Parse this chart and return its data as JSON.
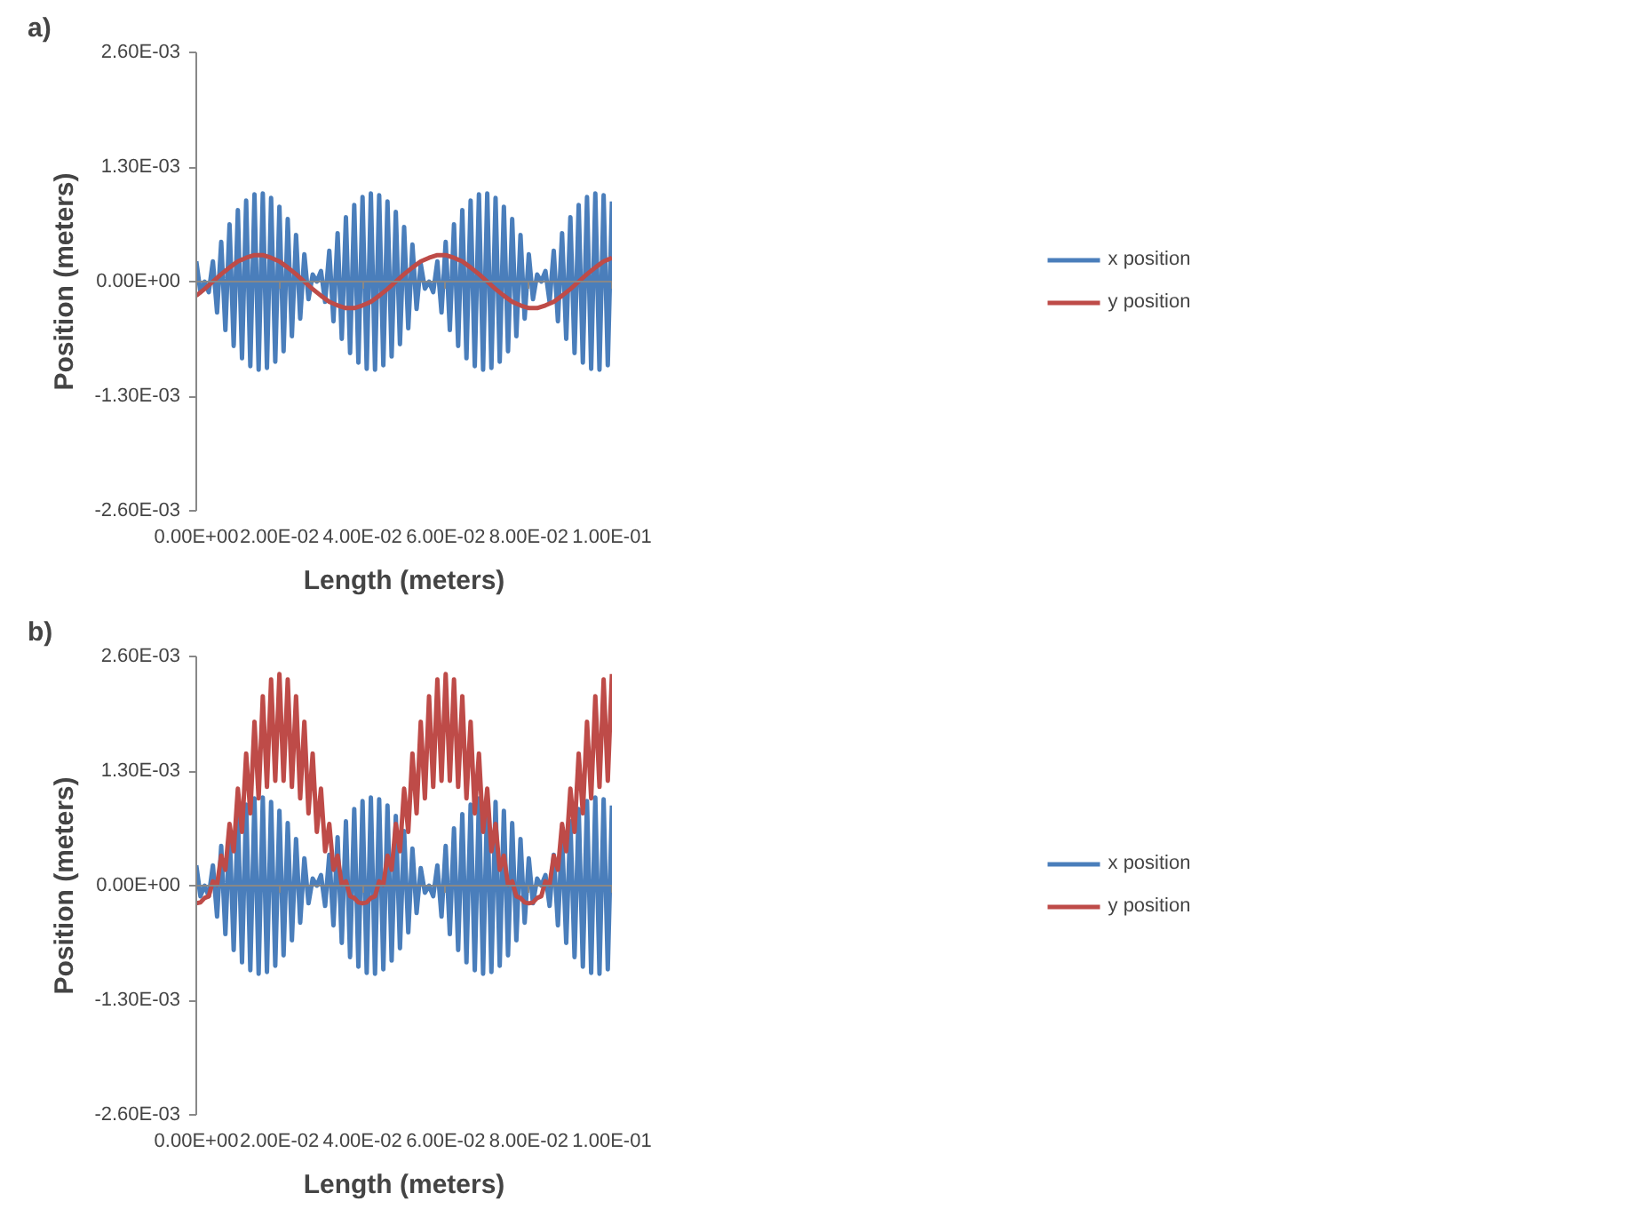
{
  "chart_data": [
    {
      "type": "line",
      "annotations": [
        "a)"
      ],
      "xlabel": "Length (meters)",
      "ylabel": "Position (meters)",
      "legend": "right",
      "x": [
        0,
        0.001,
        0.002,
        0.003,
        0.004,
        0.005,
        0.006,
        0.007,
        0.008,
        0.009,
        0.01,
        0.011,
        0.012,
        0.013,
        0.014,
        0.015,
        0.016,
        0.017,
        0.018,
        0.019,
        0.02,
        0.021,
        0.022,
        0.023,
        0.024,
        0.025,
        0.026,
        0.027,
        0.028,
        0.029,
        0.03,
        0.031,
        0.032,
        0.033,
        0.034,
        0.035,
        0.036,
        0.037,
        0.038,
        0.039,
        0.04,
        0.041,
        0.042,
        0.043,
        0.044,
        0.045,
        0.046,
        0.047,
        0.048,
        0.049,
        0.05,
        0.051,
        0.052,
        0.053,
        0.054,
        0.055,
        0.056,
        0.057,
        0.058,
        0.059,
        0.06,
        0.061,
        0.062,
        0.063,
        0.064,
        0.065,
        0.066,
        0.067,
        0.068,
        0.069,
        0.07,
        0.071,
        0.072,
        0.073,
        0.074,
        0.075,
        0.076,
        0.077,
        0.078,
        0.079,
        0.08,
        0.081,
        0.082,
        0.083,
        0.084,
        0.085,
        0.086,
        0.087,
        0.088,
        0.089,
        0.09,
        0.091,
        0.092,
        0.093,
        0.094,
        0.095,
        0.096,
        0.097,
        0.098,
        0.099,
        0.1
      ],
      "xlim": [
        0,
        0.1
      ],
      "xticks": [
        {
          "value": 0,
          "label": "0.00E+00"
        },
        {
          "value": 0.02,
          "label": "2.00E-02"
        },
        {
          "value": 0.04,
          "label": "4.00E-02"
        },
        {
          "value": 0.06,
          "label": "6.00E-02"
        },
        {
          "value": 0.08,
          "label": "8.00E-02"
        },
        {
          "value": 0.1,
          "label": "1.00E-01"
        }
      ],
      "ylim": [
        -0.0026,
        0.0026
      ],
      "yticks": [
        {
          "value": -0.0026,
          "label": "-2.60E-03"
        },
        {
          "value": -0.0013,
          "label": "-1.30E-03"
        },
        {
          "value": 0,
          "label": "0.00E+00"
        },
        {
          "value": 0.0013,
          "label": "1.30E-03"
        },
        {
          "value": 0.0026,
          "label": "2.60E-03"
        }
      ],
      "series": [
        {
          "name": "x position",
          "color": "#4a7ebb",
          "values": [
            0.00023,
            -0.00012,
            0,
            -0.00012,
            0.00023,
            -0.00035,
            0.00045,
            -0.00055,
            0.00065,
            -0.00073,
            0.00081,
            -0.00087,
            0.00092,
            -0.00096,
            0.00099,
            -0.001,
            0.001,
            -0.00098,
            0.00095,
            -0.00091,
            0.00085,
            -0.00079,
            0.00071,
            -0.00062,
            0.00053,
            -0.00042,
            0.00031,
            -0.0002,
            8e-05,
            0,
            0.00012,
            -0.00023,
            0.00035,
            -0.00045,
            0.00055,
            -0.00065,
            0.00073,
            -0.00081,
            0.00087,
            -0.00092,
            0.00096,
            -0.00099,
            0.001,
            -0.001,
            0.00098,
            -0.00095,
            0.00091,
            -0.00085,
            0.00079,
            -0.00071,
            0.00062,
            -0.00053,
            0.00042,
            -0.00031,
            0.0002,
            -8e-05,
            0,
            -0.00012,
            0.00023,
            -0.00035,
            0.00045,
            -0.00055,
            0.00065,
            -0.00073,
            0.00081,
            -0.00087,
            0.00092,
            -0.00096,
            0.00099,
            -0.001,
            0.001,
            -0.00098,
            0.00095,
            -0.00091,
            0.00085,
            -0.00079,
            0.00071,
            -0.00062,
            0.00053,
            -0.00042,
            0.00031,
            -0.0002,
            8e-05,
            0,
            0.00012,
            -0.00023,
            0.00035,
            -0.00045,
            0.00055,
            -0.00065,
            0.00073,
            -0.00081,
            0.00087,
            -0.00092,
            0.00096,
            -0.00099,
            0.001,
            -0.001,
            0.00098,
            -0.00095,
            0.00091
          ]
        },
        {
          "name": "y position",
          "color": "#be4b48",
          "x": [
            0,
            0.002,
            0.004,
            0.006,
            0.008,
            0.01,
            0.012,
            0.014,
            0.016,
            0.018,
            0.02,
            0.022,
            0.024,
            0.026,
            0.028,
            0.03,
            0.032,
            0.034,
            0.036,
            0.038,
            0.04,
            0.042,
            0.044,
            0.046,
            0.048,
            0.05,
            0.052,
            0.054,
            0.056,
            0.058,
            0.06,
            0.062,
            0.064,
            0.066,
            0.068,
            0.07,
            0.072,
            0.074,
            0.076,
            0.078,
            0.08,
            0.082,
            0.084,
            0.086,
            0.088,
            0.09,
            0.092,
            0.094,
            0.096,
            0.098,
            0.1
          ],
          "values": [
            -0.00016,
            -8.4e-05,
            0,
            8.4e-05,
            0.00016,
            0.00023,
            0.00027,
            0.0003,
            0.0003,
            0.00027,
            0.00023,
            0.00016,
            8.4e-05,
            0,
            -8.4e-05,
            -0.00016,
            -0.00023,
            -0.00027,
            -0.0003,
            -0.0003,
            -0.00027,
            -0.00023,
            -0.00016,
            -8.4e-05,
            0,
            8.4e-05,
            0.00016,
            0.00023,
            0.00027,
            0.0003,
            0.0003,
            0.00027,
            0.00023,
            0.00016,
            8.4e-05,
            0,
            -8.4e-05,
            -0.00016,
            -0.00023,
            -0.00027,
            -0.0003,
            -0.0003,
            -0.00027,
            -0.00023,
            -0.00016,
            -8.4e-05,
            0,
            8.4e-05,
            0.00016,
            0.00023,
            0.00027
          ]
        }
      ]
    },
    {
      "type": "line",
      "annotations": [
        "b)"
      ],
      "xlabel": "Length (meters)",
      "ylabel": "Position (meters)",
      "legend": "right",
      "x": [
        0,
        0.001,
        0.002,
        0.003,
        0.004,
        0.005,
        0.006,
        0.007,
        0.008,
        0.009,
        0.01,
        0.011,
        0.012,
        0.013,
        0.014,
        0.015,
        0.016,
        0.017,
        0.018,
        0.019,
        0.02,
        0.021,
        0.022,
        0.023,
        0.024,
        0.025,
        0.026,
        0.027,
        0.028,
        0.029,
        0.03,
        0.031,
        0.032,
        0.033,
        0.034,
        0.035,
        0.036,
        0.037,
        0.038,
        0.039,
        0.04,
        0.041,
        0.042,
        0.043,
        0.044,
        0.045,
        0.046,
        0.047,
        0.048,
        0.049,
        0.05,
        0.051,
        0.052,
        0.053,
        0.054,
        0.055,
        0.056,
        0.057,
        0.058,
        0.059,
        0.06,
        0.061,
        0.062,
        0.063,
        0.064,
        0.065,
        0.066,
        0.067,
        0.068,
        0.069,
        0.07,
        0.071,
        0.072,
        0.073,
        0.074,
        0.075,
        0.076,
        0.077,
        0.078,
        0.079,
        0.08,
        0.081,
        0.082,
        0.083,
        0.084,
        0.085,
        0.086,
        0.087,
        0.088,
        0.089,
        0.09,
        0.091,
        0.092,
        0.093,
        0.094,
        0.095,
        0.096,
        0.097,
        0.098,
        0.099,
        0.1
      ],
      "xlim": [
        0,
        0.1
      ],
      "xticks": [
        {
          "value": 0,
          "label": "0.00E+00"
        },
        {
          "value": 0.02,
          "label": "2.00E-02"
        },
        {
          "value": 0.04,
          "label": "4.00E-02"
        },
        {
          "value": 0.06,
          "label": "6.00E-02"
        },
        {
          "value": 0.08,
          "label": "8.00E-02"
        },
        {
          "value": 0.1,
          "label": "1.00E-01"
        }
      ],
      "ylim": [
        -0.0026,
        0.0026
      ],
      "yticks": [
        {
          "value": -0.0026,
          "label": "-2.60E-03"
        },
        {
          "value": -0.0013,
          "label": "-1.30E-03"
        },
        {
          "value": 0,
          "label": "0.00E+00"
        },
        {
          "value": 0.0013,
          "label": "1.30E-03"
        },
        {
          "value": 0.0026,
          "label": "2.60E-03"
        }
      ],
      "series": [
        {
          "name": "x position",
          "color": "#4a7ebb",
          "values": [
            0.00023,
            -0.00012,
            0,
            -0.00012,
            0.00023,
            -0.00035,
            0.00045,
            -0.00055,
            0.00065,
            -0.00073,
            0.00081,
            -0.00087,
            0.00092,
            -0.00096,
            0.00099,
            -0.001,
            0.001,
            -0.00098,
            0.00095,
            -0.00091,
            0.00085,
            -0.00079,
            0.00071,
            -0.00062,
            0.00053,
            -0.00042,
            0.00031,
            -0.0002,
            8e-05,
            0,
            0.00012,
            -0.00023,
            0.00035,
            -0.00045,
            0.00055,
            -0.00065,
            0.00073,
            -0.00081,
            0.00087,
            -0.00092,
            0.00096,
            -0.00099,
            0.001,
            -0.001,
            0.00098,
            -0.00095,
            0.00091,
            -0.00085,
            0.00079,
            -0.00071,
            0.00062,
            -0.00053,
            0.00042,
            -0.00031,
            0.0002,
            -8e-05,
            0,
            -0.00012,
            0.00023,
            -0.00035,
            0.00045,
            -0.00055,
            0.00065,
            -0.00073,
            0.00081,
            -0.00087,
            0.00092,
            -0.00096,
            0.00099,
            -0.001,
            0.001,
            -0.00098,
            0.00095,
            -0.00091,
            0.00085,
            -0.00079,
            0.00071,
            -0.00062,
            0.00053,
            -0.00042,
            0.00031,
            -0.0002,
            8e-05,
            0,
            0.00012,
            -0.00023,
            0.00035,
            -0.00045,
            0.00055,
            -0.00065,
            0.00073,
            -0.00081,
            0.00087,
            -0.00092,
            0.00096,
            -0.00099,
            0.001,
            -0.001,
            0.00098,
            -0.00095,
            0.00091
          ]
        },
        {
          "name": "y position",
          "color": "#be4b48",
          "values": [
            -0.0002,
            -0.00019,
            -0.00014,
            -0.00012,
            5e-05,
            1e-05,
            0.00034,
            0.00018,
            0.0007,
            0.00039,
            0.0011,
            0.00061,
            0.0015,
            0.00082,
            0.00186,
            0.00099,
            0.00215,
            0.00112,
            0.00234,
            0.00119,
            0.0024,
            0.00119,
            0.00234,
            0.00112,
            0.00215,
            0.00099,
            0.00186,
            0.00082,
            0.0015,
            0.00061,
            0.0011,
            0.00039,
            0.0007,
            0.00018,
            0.00034,
            1e-05,
            5e-05,
            -0.00012,
            -0.00014,
            -0.00019,
            -0.0002,
            -0.00019,
            -0.00014,
            -0.00012,
            5e-05,
            1e-05,
            0.00034,
            0.00018,
            0.0007,
            0.00039,
            0.0011,
            0.00061,
            0.0015,
            0.00082,
            0.00186,
            0.00099,
            0.00215,
            0.00112,
            0.00234,
            0.00119,
            0.0024,
            0.00119,
            0.00234,
            0.00112,
            0.00215,
            0.00099,
            0.00186,
            0.00082,
            0.0015,
            0.00061,
            0.0011,
            0.00039,
            0.0007,
            0.00018,
            0.00034,
            1e-05,
            5e-05,
            -0.00012,
            -0.00014,
            -0.00019,
            -0.0002,
            -0.00019,
            -0.00014,
            -0.00012,
            5e-05,
            1e-05,
            0.00034,
            0.00018,
            0.0007,
            0.00039,
            0.0011,
            0.00061,
            0.0015,
            0.00082,
            0.00186,
            0.00099,
            0.00215,
            0.00112,
            0.00234,
            0.00119,
            0.0024
          ]
        }
      ]
    }
  ]
}
